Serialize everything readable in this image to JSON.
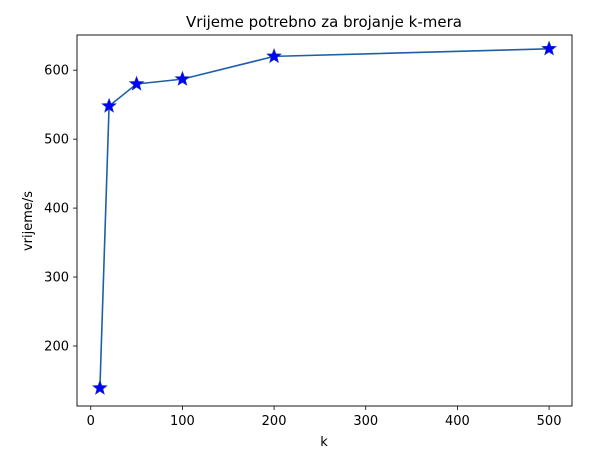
{
  "chart_data": {
    "type": "line",
    "title": "Vrijeme potrebno za brojanje k-mera",
    "xlabel": "k",
    "ylabel": "vrijeme/s",
    "xlim": [
      -15,
      525
    ],
    "ylim": [
      113,
      651
    ],
    "xticks": [
      0,
      100,
      200,
      300,
      400,
      500
    ],
    "yticks": [
      200,
      300,
      400,
      500,
      600
    ],
    "grid": false,
    "series": [
      {
        "x": [
          10,
          20,
          50,
          100,
          200,
          500
        ],
        "y": [
          139,
          548,
          580,
          587,
          620,
          631
        ],
        "line_color": "#1f5fa8",
        "marker": "star",
        "marker_color": "#0000ff"
      }
    ]
  }
}
